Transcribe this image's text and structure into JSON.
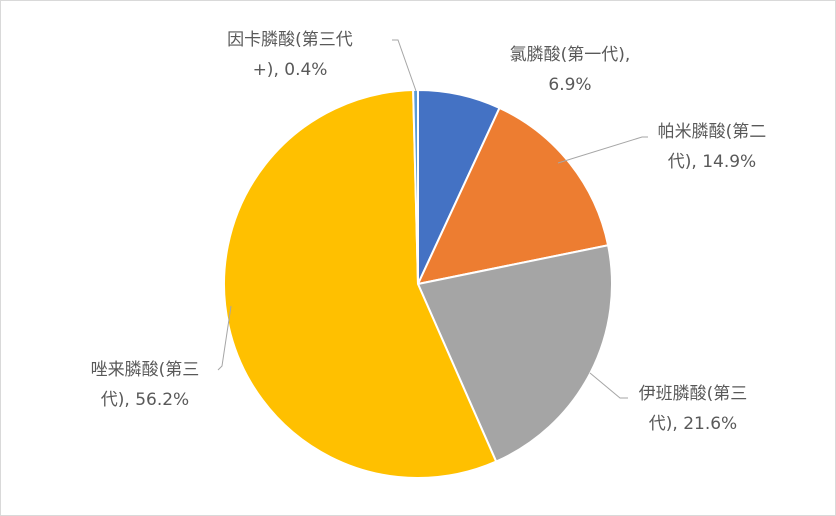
{
  "chart_data": {
    "type": "pie",
    "title": "",
    "categories": [
      "氯膦酸(第一代)",
      "帕米膦酸(第二代)",
      "伊班膦酸(第三代)",
      "唑来膦酸(第三代)",
      "因卡膦酸(第三代+)"
    ],
    "values": [
      6.9,
      14.9,
      21.6,
      56.2,
      0.4
    ],
    "unit": "%",
    "colors": [
      "#4472c4",
      "#ed7d31",
      "#a5a5a5",
      "#ffc000",
      "#5b9bd5"
    ],
    "data_labels": [
      [
        "氯膦酸(第一代),",
        "6.9%"
      ],
      [
        "帕米膦酸(第二",
        "代), 14.9%"
      ],
      [
        "伊班膦酸(第三",
        "代), 21.6%"
      ],
      [
        "唑来膦酸(第三",
        "代), 56.2%"
      ],
      [
        "因卡膦酸(第三代",
        "+), 0.4%"
      ]
    ],
    "legend": "none",
    "start_angle_deg": 0,
    "direction": "clockwise"
  }
}
